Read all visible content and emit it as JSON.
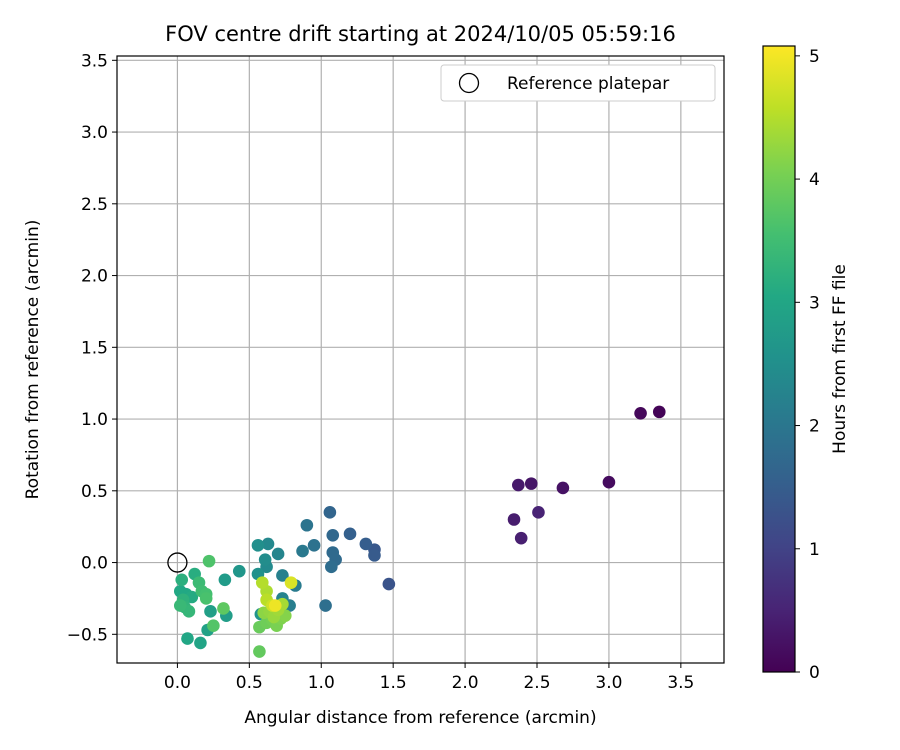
{
  "chart_data": {
    "type": "scatter",
    "title": "FOV centre drift starting at 2024/10/05 05:59:16",
    "xlabel": "Angular distance from reference (arcmin)",
    "ylabel": "Rotation from reference (arcmin)",
    "xlim": [
      -0.42,
      3.8
    ],
    "ylim": [
      -0.7,
      3.53
    ],
    "xticks": [
      0.0,
      0.5,
      1.0,
      1.5,
      2.0,
      2.5,
      3.0,
      3.5
    ],
    "xtick_labels": [
      "0.0",
      "0.5",
      "1.0",
      "1.5",
      "2.0",
      "2.5",
      "3.0",
      "3.5"
    ],
    "yticks": [
      -0.5,
      0.0,
      0.5,
      1.0,
      1.5,
      2.0,
      2.5,
      3.0,
      3.5
    ],
    "ytick_labels": [
      "−0.5",
      "0.0",
      "0.5",
      "1.0",
      "1.5",
      "2.0",
      "2.5",
      "3.0",
      "3.5"
    ],
    "grid": true,
    "colormap": "viridis",
    "colorbar": {
      "label": "Hours from first FF file",
      "range": [
        0,
        5.08
      ],
      "ticks": [
        0,
        1,
        2,
        3,
        4,
        5
      ],
      "tick_labels": [
        "0",
        "1",
        "2",
        "3",
        "4",
        "5"
      ]
    },
    "legend": {
      "placement": "top-right",
      "entries": [
        {
          "label": "Reference platepar",
          "marker": "open-circle"
        }
      ]
    },
    "reference_point": {
      "x": 0.0,
      "y": 0.0
    },
    "points": [
      {
        "x": 3.35,
        "y": 1.05,
        "c": 0.05
      },
      {
        "x": 3.22,
        "y": 1.04,
        "c": 0.1
      },
      {
        "x": 3.0,
        "y": 0.56,
        "c": 0.15
      },
      {
        "x": 2.68,
        "y": 0.52,
        "c": 0.25
      },
      {
        "x": 2.46,
        "y": 0.55,
        "c": 0.3
      },
      {
        "x": 2.37,
        "y": 0.54,
        "c": 0.35
      },
      {
        "x": 2.34,
        "y": 0.3,
        "c": 0.4
      },
      {
        "x": 2.39,
        "y": 0.17,
        "c": 0.45
      },
      {
        "x": 2.51,
        "y": 0.35,
        "c": 0.5
      },
      {
        "x": 1.47,
        "y": -0.15,
        "c": 1.3
      },
      {
        "x": 1.37,
        "y": 0.09,
        "c": 1.4
      },
      {
        "x": 1.37,
        "y": 0.05,
        "c": 1.45
      },
      {
        "x": 1.31,
        "y": 0.13,
        "c": 1.5
      },
      {
        "x": 1.2,
        "y": 0.2,
        "c": 1.55
      },
      {
        "x": 1.06,
        "y": 0.35,
        "c": 1.65
      },
      {
        "x": 1.08,
        "y": 0.19,
        "c": 1.7
      },
      {
        "x": 1.08,
        "y": 0.07,
        "c": 1.75
      },
      {
        "x": 1.1,
        "y": 0.02,
        "c": 1.75
      },
      {
        "x": 1.07,
        "y": -0.03,
        "c": 1.8
      },
      {
        "x": 1.03,
        "y": -0.3,
        "c": 1.85
      },
      {
        "x": 0.95,
        "y": 0.12,
        "c": 1.9
      },
      {
        "x": 0.9,
        "y": 0.26,
        "c": 1.95
      },
      {
        "x": 0.87,
        "y": 0.08,
        "c": 2.05
      },
      {
        "x": 0.82,
        "y": -0.16,
        "c": 2.1
      },
      {
        "x": 0.78,
        "y": -0.3,
        "c": 2.15
      },
      {
        "x": 0.73,
        "y": -0.09,
        "c": 2.2
      },
      {
        "x": 0.73,
        "y": -0.25,
        "c": 2.25
      },
      {
        "x": 0.7,
        "y": 0.06,
        "c": 2.3
      },
      {
        "x": 0.63,
        "y": 0.13,
        "c": 2.35
      },
      {
        "x": 0.62,
        "y": -0.03,
        "c": 2.4
      },
      {
        "x": 0.61,
        "y": 0.02,
        "c": 2.45
      },
      {
        "x": 0.56,
        "y": 0.12,
        "c": 2.5
      },
      {
        "x": 0.56,
        "y": -0.08,
        "c": 2.55
      },
      {
        "x": 0.58,
        "y": -0.36,
        "c": 2.6
      },
      {
        "x": 0.43,
        "y": -0.06,
        "c": 2.65
      },
      {
        "x": 0.33,
        "y": -0.12,
        "c": 2.75
      },
      {
        "x": 0.34,
        "y": -0.37,
        "c": 2.8
      },
      {
        "x": 0.23,
        "y": -0.34,
        "c": 2.85
      },
      {
        "x": 0.21,
        "y": -0.47,
        "c": 2.9
      },
      {
        "x": 0.16,
        "y": -0.56,
        "c": 2.95
      },
      {
        "x": 0.07,
        "y": -0.53,
        "c": 3.0
      },
      {
        "x": 0.02,
        "y": -0.2,
        "c": 3.05
      },
      {
        "x": 0.06,
        "y": -0.22,
        "c": 3.05
      },
      {
        "x": 0.1,
        "y": -0.24,
        "c": 3.1
      },
      {
        "x": 0.12,
        "y": -0.08,
        "c": 3.15
      },
      {
        "x": 0.03,
        "y": -0.12,
        "c": 3.2
      },
      {
        "x": 0.04,
        "y": -0.26,
        "c": 3.25
      },
      {
        "x": 0.05,
        "y": -0.31,
        "c": 3.3
      },
      {
        "x": 0.08,
        "y": -0.34,
        "c": 3.35
      },
      {
        "x": 0.02,
        "y": -0.3,
        "c": 3.4
      },
      {
        "x": 0.15,
        "y": -0.14,
        "c": 3.45
      },
      {
        "x": 0.17,
        "y": -0.2,
        "c": 3.5
      },
      {
        "x": 0.2,
        "y": -0.22,
        "c": 3.55
      },
      {
        "x": 0.2,
        "y": -0.25,
        "c": 3.6
      },
      {
        "x": 0.22,
        "y": 0.01,
        "c": 3.65
      },
      {
        "x": 0.25,
        "y": -0.44,
        "c": 3.7
      },
      {
        "x": 0.32,
        "y": -0.32,
        "c": 3.8
      },
      {
        "x": 0.57,
        "y": -0.62,
        "c": 3.85
      },
      {
        "x": 0.57,
        "y": -0.45,
        "c": 3.9
      },
      {
        "x": 0.62,
        "y": -0.42,
        "c": 3.95
      },
      {
        "x": 0.66,
        "y": -0.4,
        "c": 4.0
      },
      {
        "x": 0.69,
        "y": -0.44,
        "c": 4.05
      },
      {
        "x": 0.72,
        "y": -0.39,
        "c": 4.1
      },
      {
        "x": 0.75,
        "y": -0.37,
        "c": 4.15
      },
      {
        "x": 0.6,
        "y": -0.35,
        "c": 4.2
      },
      {
        "x": 0.64,
        "y": -0.34,
        "c": 4.25
      },
      {
        "x": 0.67,
        "y": -0.38,
        "c": 4.3
      },
      {
        "x": 0.7,
        "y": -0.33,
        "c": 4.35
      },
      {
        "x": 0.73,
        "y": -0.29,
        "c": 4.4
      },
      {
        "x": 0.62,
        "y": -0.2,
        "c": 4.45
      },
      {
        "x": 0.59,
        "y": -0.14,
        "c": 4.5
      },
      {
        "x": 0.62,
        "y": -0.26,
        "c": 4.55
      },
      {
        "x": 0.66,
        "y": -0.3,
        "c": 4.7
      },
      {
        "x": 0.79,
        "y": -0.14,
        "c": 4.8
      },
      {
        "x": 0.68,
        "y": -0.3,
        "c": 4.95
      }
    ]
  }
}
